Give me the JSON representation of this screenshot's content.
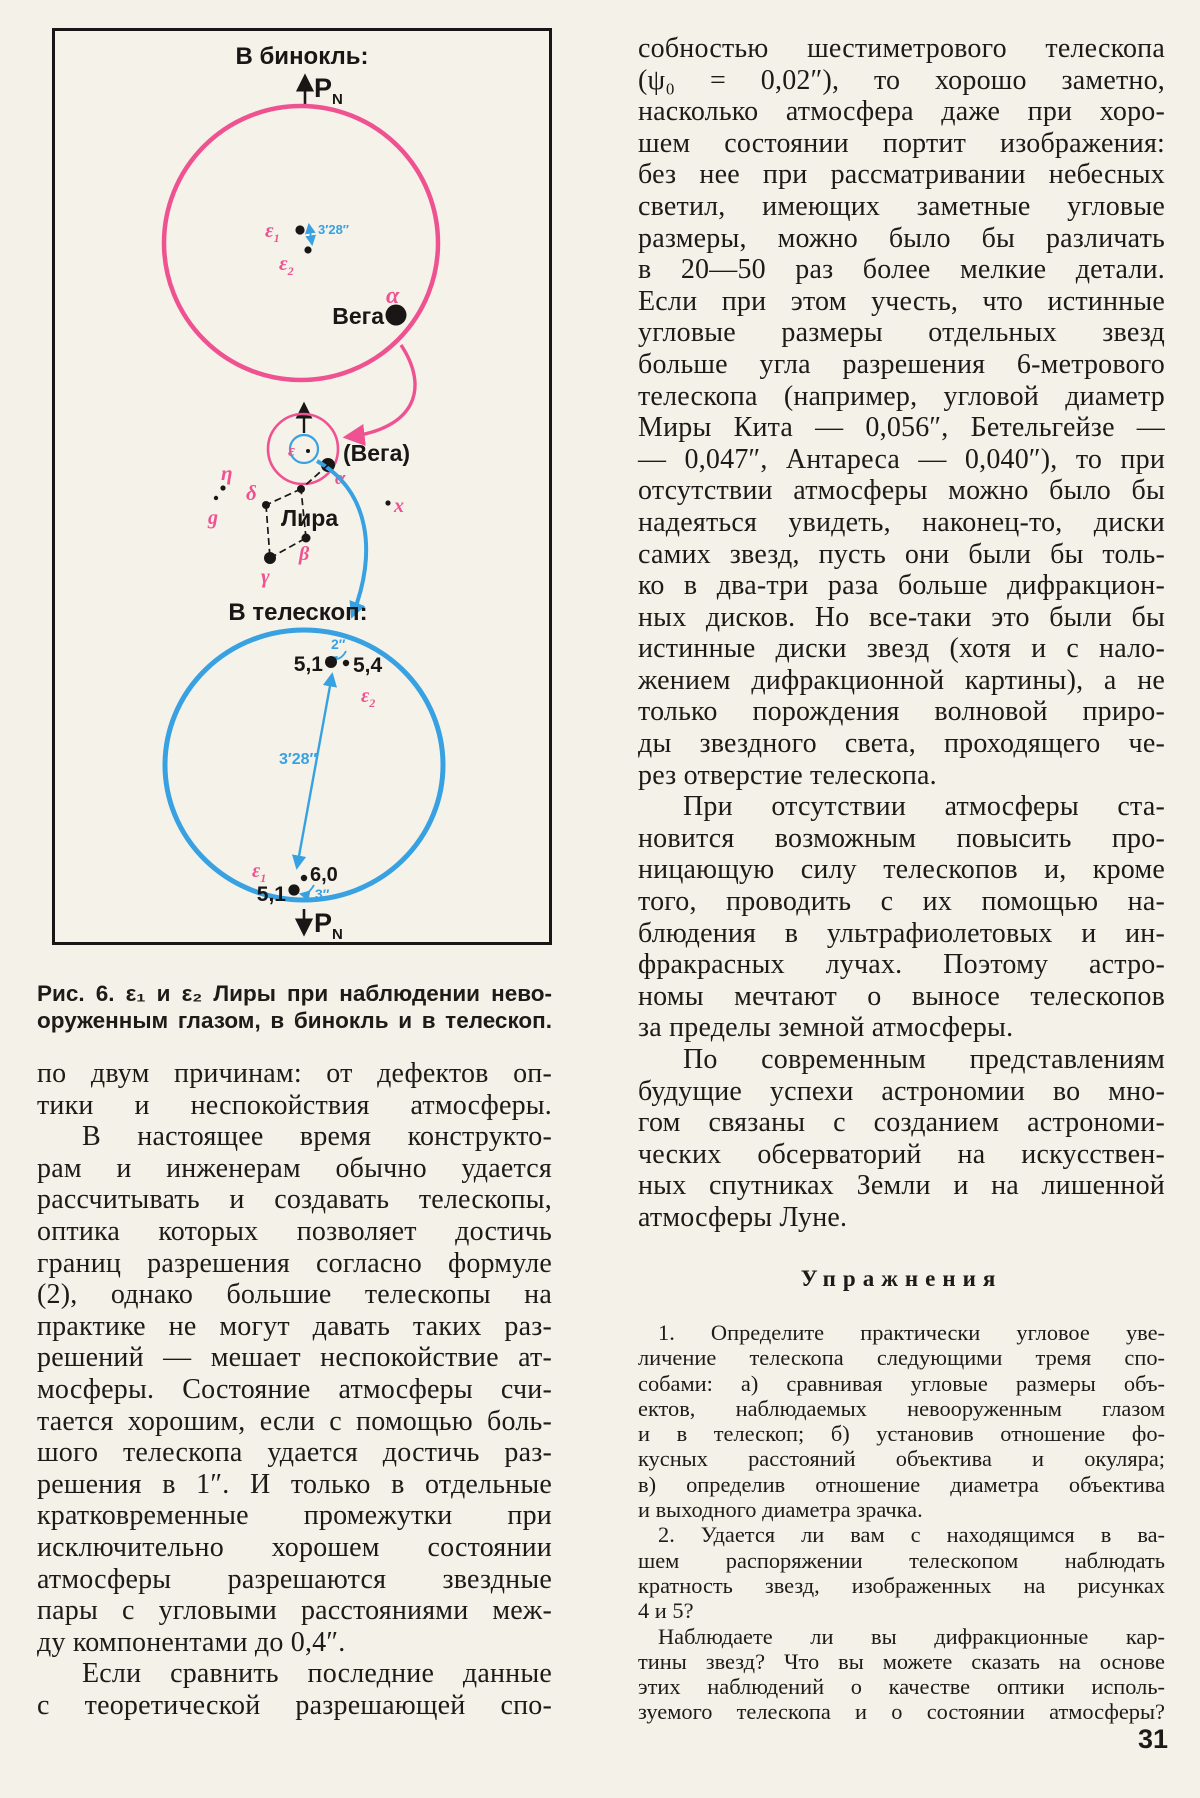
{
  "palette": {
    "pink": "#ef5290",
    "blue": "#38a1e2",
    "ink": "#1c1b18",
    "paper": "#f4f1e9"
  },
  "page_number": "31",
  "figure": {
    "title_binocular": "В бинокль:",
    "title_telescope": "В телескоп:",
    "pn_p": "P",
    "pn_n": "N",
    "eps": "ε",
    "sub1": "1",
    "sub2": "2",
    "sep_328": "3′28″",
    "sep_2": "2″",
    "sep_3": "3″",
    "alpha": "α",
    "vega": "Вега",
    "vega_paren": "(Вега)",
    "eta": "η",
    "g": "g",
    "delta": "δ",
    "lyra": "Лира",
    "beta": "β",
    "gamma": "γ",
    "x_label": "x",
    "mag_51": "5,1",
    "mag_54": "5,4",
    "mag_60": "6,0"
  },
  "caption": {
    "line1": "Рис. 6. ε₁ и ε₂ Лиры при наблюдении нево-",
    "line2": "оруженным глазом, в бинокль и в телескоп."
  },
  "left_column": {
    "lines": [
      {
        "t": "по двум причинам: от дефектов оп-",
        "j": true,
        "i": false
      },
      {
        "t": "тики и неспокойствия атмосферы.",
        "j": true,
        "i": false
      },
      {
        "t": "В настоящее время конструкто-",
        "j": true,
        "i": true
      },
      {
        "t": "рам и инженерам обычно удается",
        "j": true,
        "i": false
      },
      {
        "t": "рассчитывать и создавать телескопы,",
        "j": true,
        "i": false
      },
      {
        "t": "оптика которых позволяет достичь",
        "j": true,
        "i": false
      },
      {
        "t": "границ разрешения согласно формуле",
        "j": true,
        "i": false
      },
      {
        "t": "(2), однако большие телескопы на",
        "j": true,
        "i": false
      },
      {
        "t": "практике не могут давать таких раз-",
        "j": true,
        "i": false
      },
      {
        "t": "решений — мешает неспокойствие ат-",
        "j": true,
        "i": false
      },
      {
        "t": "мосферы. Состояние атмосферы счи-",
        "j": true,
        "i": false
      },
      {
        "t": "тается хорошим, если с помощью боль-",
        "j": true,
        "i": false
      },
      {
        "t": "шого телескопа удается достичь раз-",
        "j": true,
        "i": false
      },
      {
        "t": "решения в 1″. И только в отдельные",
        "j": true,
        "i": false
      },
      {
        "t": "кратковременные промежутки при",
        "j": true,
        "i": false
      },
      {
        "t": "исключительно хорошем состоянии",
        "j": true,
        "i": false
      },
      {
        "t": "атмосферы разрешаются звездные",
        "j": true,
        "i": false
      },
      {
        "t": "пары с угловыми расстояниями меж-",
        "j": true,
        "i": false
      },
      {
        "t": "ду компонентами до 0,4″.",
        "j": false,
        "i": false
      },
      {
        "t": "Если сравнить последние данные",
        "j": true,
        "i": true
      },
      {
        "t": "с теоретической разрешающей спо-",
        "j": true,
        "i": false
      }
    ]
  },
  "right_column": {
    "lines": [
      {
        "t": "собностью шестиметрового телескопа",
        "j": true,
        "i": false
      },
      {
        "t": "(ψ₀ = 0,02″), то хорошо заметно,",
        "j": true,
        "i": false
      },
      {
        "t": "насколько атмосфера даже при хоро-",
        "j": true,
        "i": false
      },
      {
        "t": "шем состоянии портит изображения:",
        "j": true,
        "i": false
      },
      {
        "t": "без нее при рассматривании небесных",
        "j": true,
        "i": false
      },
      {
        "t": "светил, имеющих заметные угловые",
        "j": true,
        "i": false
      },
      {
        "t": "размеры, можно было бы различать",
        "j": true,
        "i": false
      },
      {
        "t": "в 20—50 раз более мелкие детали.",
        "j": true,
        "i": false
      },
      {
        "t": "Если при этом учесть, что истинные",
        "j": true,
        "i": false
      },
      {
        "t": "угловые размеры отдельных звезд",
        "j": true,
        "i": false
      },
      {
        "t": "больше угла разрешения 6-метрового",
        "j": true,
        "i": false
      },
      {
        "t": "телескопа (например, угловой диаметр",
        "j": true,
        "i": false
      },
      {
        "t": "Миры Кита — 0,056″, Бетельгейзе —",
        "j": true,
        "i": false
      },
      {
        "t": "— 0,047″, Антареса — 0,040″), то при",
        "j": true,
        "i": false
      },
      {
        "t": "отсутствии атмосферы можно было бы",
        "j": true,
        "i": false
      },
      {
        "t": "надеяться увидеть, наконец-то, диски",
        "j": true,
        "i": false
      },
      {
        "t": "самих звезд, пусть они были бы толь-",
        "j": true,
        "i": false
      },
      {
        "t": "ко в два-три раза больше дифракцион-",
        "j": true,
        "i": false
      },
      {
        "t": "ных дисков. Но все-таки это были бы",
        "j": true,
        "i": false
      },
      {
        "t": "истинные диски звезд (хотя и с нало-",
        "j": true,
        "i": false
      },
      {
        "t": "жением дифракционной картины), а не",
        "j": true,
        "i": false
      },
      {
        "t": "только порождения волновой приро-",
        "j": true,
        "i": false
      },
      {
        "t": "ды звездного света, проходящего че-",
        "j": true,
        "i": false
      },
      {
        "t": "рез отверстие телескопа.",
        "j": false,
        "i": false
      },
      {
        "t": "При отсутствии атмосферы ста-",
        "j": true,
        "i": true
      },
      {
        "t": "новится возможным повысить про-",
        "j": true,
        "i": false
      },
      {
        "t": "ницающую силу телескопов и, кроме",
        "j": true,
        "i": false
      },
      {
        "t": "того, проводить с их помощью на-",
        "j": true,
        "i": false
      },
      {
        "t": "блюдения в ультрафиолетовых и ин-",
        "j": true,
        "i": false
      },
      {
        "t": "фракрасных лучах. Поэтому астро-",
        "j": true,
        "i": false
      },
      {
        "t": "номы мечтают о выносе телескопов",
        "j": true,
        "i": false
      },
      {
        "t": "за пределы земной атмосферы.",
        "j": false,
        "i": false
      },
      {
        "t": "По современным представлениям",
        "j": true,
        "i": true
      },
      {
        "t": "будущие успехи астрономии во мно-",
        "j": true,
        "i": false
      },
      {
        "t": "гом связаны с созданием астрономи-",
        "j": true,
        "i": false
      },
      {
        "t": "ческих обсерваторий на искусствен-",
        "j": true,
        "i": false
      },
      {
        "t": "ных спутниках Земли и на лишенной",
        "j": true,
        "i": false
      },
      {
        "t": "атмосферы Луне.",
        "j": false,
        "i": false
      }
    ]
  },
  "exercises": {
    "title": "Упражнения",
    "lines": [
      {
        "t": "1. Определите практически угловое уве-",
        "j": true,
        "i": true
      },
      {
        "t": "личение телескопа следующими тремя спо-",
        "j": true,
        "i": false
      },
      {
        "t": "собами: а) сравнивая угловые размеры объ-",
        "j": true,
        "i": false
      },
      {
        "t": "ектов, наблюдаемых невооруженным глазом",
        "j": true,
        "i": false
      },
      {
        "t": "и в телескоп; б) установив отношение фо-",
        "j": true,
        "i": false
      },
      {
        "t": "кусных расстояний объектива и окуляра;",
        "j": true,
        "i": false
      },
      {
        "t": "в) определив отношение диаметра объектива",
        "j": true,
        "i": false
      },
      {
        "t": "и выходного диаметра зрачка.",
        "j": false,
        "i": false
      },
      {
        "t": "2. Удается ли вам с находящимся в ва-",
        "j": true,
        "i": true
      },
      {
        "t": "шем распоряжении телескопом наблюдать",
        "j": true,
        "i": false
      },
      {
        "t": "кратность звезд, изображенных на рисунках",
        "j": true,
        "i": false
      },
      {
        "t": "4 и 5?",
        "j": false,
        "i": false
      },
      {
        "t": "Наблюдаете ли вы дифракционные кар-",
        "j": true,
        "i": true
      },
      {
        "t": "тины звезд? Что вы можете сказать на основе",
        "j": true,
        "i": false
      },
      {
        "t": "этих наблюдений о качестве оптики исполь-",
        "j": true,
        "i": false
      },
      {
        "t": "зуемого телескопа и о состоянии атмосферы?",
        "j": true,
        "i": false
      }
    ]
  }
}
